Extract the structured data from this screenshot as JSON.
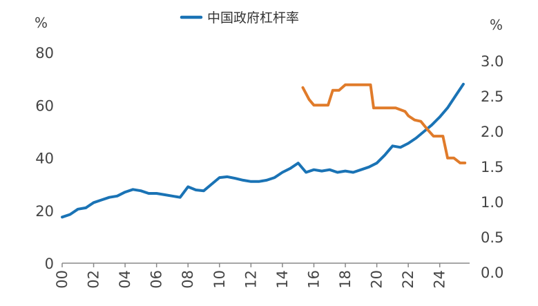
{
  "chart_data": {
    "type": "line",
    "left_unit": "%",
    "right_unit": "%",
    "x_axis": {
      "range": [
        2000,
        2025.9
      ],
      "ticks": [
        2000,
        2002,
        2004,
        2006,
        2008,
        2010,
        2012,
        2014,
        2016,
        2018,
        2020,
        2022,
        2024
      ],
      "tick_labels": [
        "00",
        "02",
        "04",
        "06",
        "08",
        "10",
        "12",
        "14",
        "16",
        "18",
        "20",
        "22",
        "24"
      ]
    },
    "y_left": {
      "range": [
        0,
        80
      ],
      "ticks": [
        0,
        20,
        40,
        60,
        80
      ],
      "tick_labels": [
        "0",
        "20",
        "40",
        "60",
        "80"
      ]
    },
    "y_right": {
      "range": [
        0,
        3.0
      ],
      "ticks": [
        0,
        0.5,
        1.0,
        1.5,
        2.0,
        2.5,
        3.0
      ],
      "tick_labels": [
        "0.0",
        "0.5",
        "1.0",
        "1.5",
        "2.0",
        "2.5",
        "3.0"
      ]
    },
    "legend": {
      "position": "top-center",
      "entries": [
        {
          "label": "中国政府杠杆率",
          "color": "#1a73b5"
        }
      ]
    },
    "grid": false,
    "series": [
      {
        "name": "中国政府杠杆率",
        "axis": "left",
        "color": "#1a73b5",
        "x": [
          2000,
          2000.5,
          2001,
          2001.5,
          2002,
          2002.5,
          2003,
          2003.5,
          2004,
          2004.5,
          2005,
          2005.5,
          2006,
          2006.5,
          2007,
          2007.5,
          2008,
          2008.5,
          2009,
          2009.5,
          2010,
          2010.5,
          2011,
          2011.5,
          2012,
          2012.5,
          2013,
          2013.5,
          2014,
          2014.5,
          2015,
          2015.5,
          2016,
          2016.5,
          2017,
          2017.5,
          2018,
          2018.5,
          2019,
          2019.5,
          2020,
          2020.5,
          2021,
          2021.5,
          2022,
          2022.5,
          2023,
          2023.5,
          2024,
          2024.5,
          2025,
          2025.5
        ],
        "values": [
          17.5,
          18.5,
          20.5,
          21,
          23,
          24,
          25,
          25.5,
          27,
          28,
          27.5,
          26.5,
          26.5,
          26,
          25.5,
          25,
          29,
          27.8,
          27.5,
          30,
          32.5,
          32.8,
          32.2,
          31.5,
          31,
          31,
          31.5,
          32.5,
          34.5,
          36,
          38,
          34.5,
          35.5,
          35,
          35.5,
          34.5,
          35,
          34.5,
          35.5,
          36.5,
          38,
          41,
          44.5,
          44,
          45.5,
          47.5,
          50,
          52.5,
          55.5,
          59,
          63.5,
          68
        ]
      },
      {
        "axis": "right",
        "color": "#e07b2a",
        "x": [
          2015.3,
          2015.7,
          2016.0,
          2016.5,
          2016.9,
          2017.2,
          2017.6,
          2018.0,
          2018.5,
          2019.0,
          2019.6,
          2019.8,
          2020.2,
          2020.6,
          2021.2,
          2021.8,
          2022.0,
          2022.4,
          2022.8,
          2023.2,
          2023.6,
          2024.0,
          2024.2,
          2024.5,
          2024.9,
          2025.3,
          2025.6
        ],
        "values": [
          2.62,
          2.45,
          2.37,
          2.37,
          2.37,
          2.58,
          2.58,
          2.66,
          2.66,
          2.66,
          2.66,
          2.33,
          2.33,
          2.33,
          2.33,
          2.28,
          2.22,
          2.16,
          2.14,
          2.03,
          1.93,
          1.93,
          1.93,
          1.62,
          1.62,
          1.55,
          1.55
        ]
      }
    ]
  }
}
